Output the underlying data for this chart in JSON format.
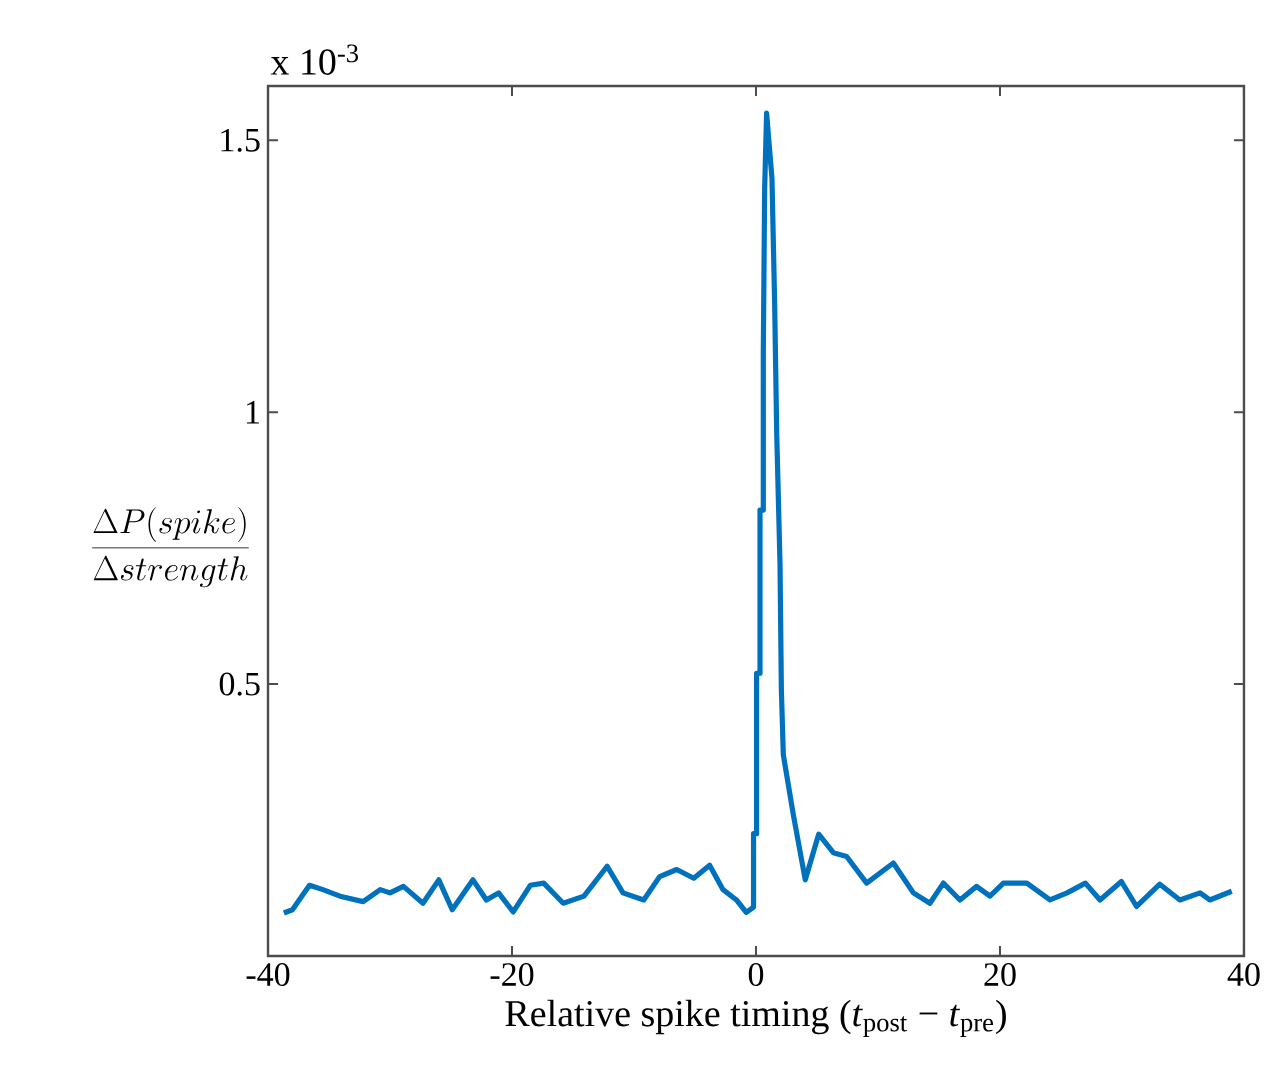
{
  "chart_data": {
    "type": "line",
    "xlabel": "Relative spike timing (*t*$_{post}$ − *t*$_{pre}$)",
    "ylabel": "\\frac{\\Delta P(spike)}{\\Delta strength}",
    "annotations": [
      "x 10$^{-3}$"
    ],
    "xlim": [
      -40,
      40
    ],
    "ylim": [
      0,
      1.6
    ],
    "xticks": [
      -40,
      -20,
      0,
      20,
      40
    ],
    "yticks": [
      0.5,
      1,
      1.5
    ],
    "grid": false,
    "marker": "none",
    "line_style": "solid",
    "series": [
      {
        "color": "#0072bd",
        "x": [
          -38.7,
          -38,
          -36.6,
          -35.5,
          -34.1,
          -32.2,
          -30.8,
          -30,
          -28.9,
          -27.3,
          -26,
          -24.9,
          -23.2,
          -22.1,
          -21.1,
          -19.9,
          -18.5,
          -17.4,
          -15.8,
          -14.1,
          -12.2,
          -10.9,
          -9.2,
          -7.9,
          -6.5,
          -5.1,
          -3.8,
          -2.7,
          -1.6,
          -0.8,
          -0.2,
          -0.2,
          0.05,
          0.05,
          0.33,
          0.33,
          0.6,
          0.6,
          0.71,
          0.87,
          1.31,
          1.53,
          1.7,
          1.97,
          2.08,
          2.24,
          3.06,
          4.04,
          5.14,
          6.34,
          7.43,
          9.07,
          11.26,
          12.9,
          14.26,
          15.36,
          16.72,
          18.08,
          19.18,
          20.28,
          22.2,
          24.1,
          25.5,
          27,
          28.2,
          29.95,
          31.2,
          33.1,
          34.75,
          36.4,
          37.2,
          39
        ],
        "values": [
          0.079,
          0.085,
          0.13,
          0.122,
          0.11,
          0.1,
          0.122,
          0.116,
          0.128,
          0.097,
          0.14,
          0.085,
          0.14,
          0.103,
          0.116,
          0.081,
          0.13,
          0.134,
          0.097,
          0.11,
          0.165,
          0.116,
          0.103,
          0.146,
          0.159,
          0.143,
          0.167,
          0.122,
          0.103,
          0.08,
          0.09,
          0.225,
          0.225,
          0.52,
          0.52,
          0.82,
          0.82,
          1.11,
          1.41,
          1.55,
          1.43,
          1.2,
          0.96,
          0.72,
          0.49,
          0.37,
          0.26,
          0.14,
          0.224,
          0.19,
          0.183,
          0.134,
          0.171,
          0.116,
          0.097,
          0.134,
          0.103,
          0.128,
          0.11,
          0.134,
          0.134,
          0.103,
          0.116,
          0.134,
          0.103,
          0.137,
          0.091,
          0.132,
          0.103,
          0.116,
          0.103,
          0.119
        ]
      }
    ]
  }
}
